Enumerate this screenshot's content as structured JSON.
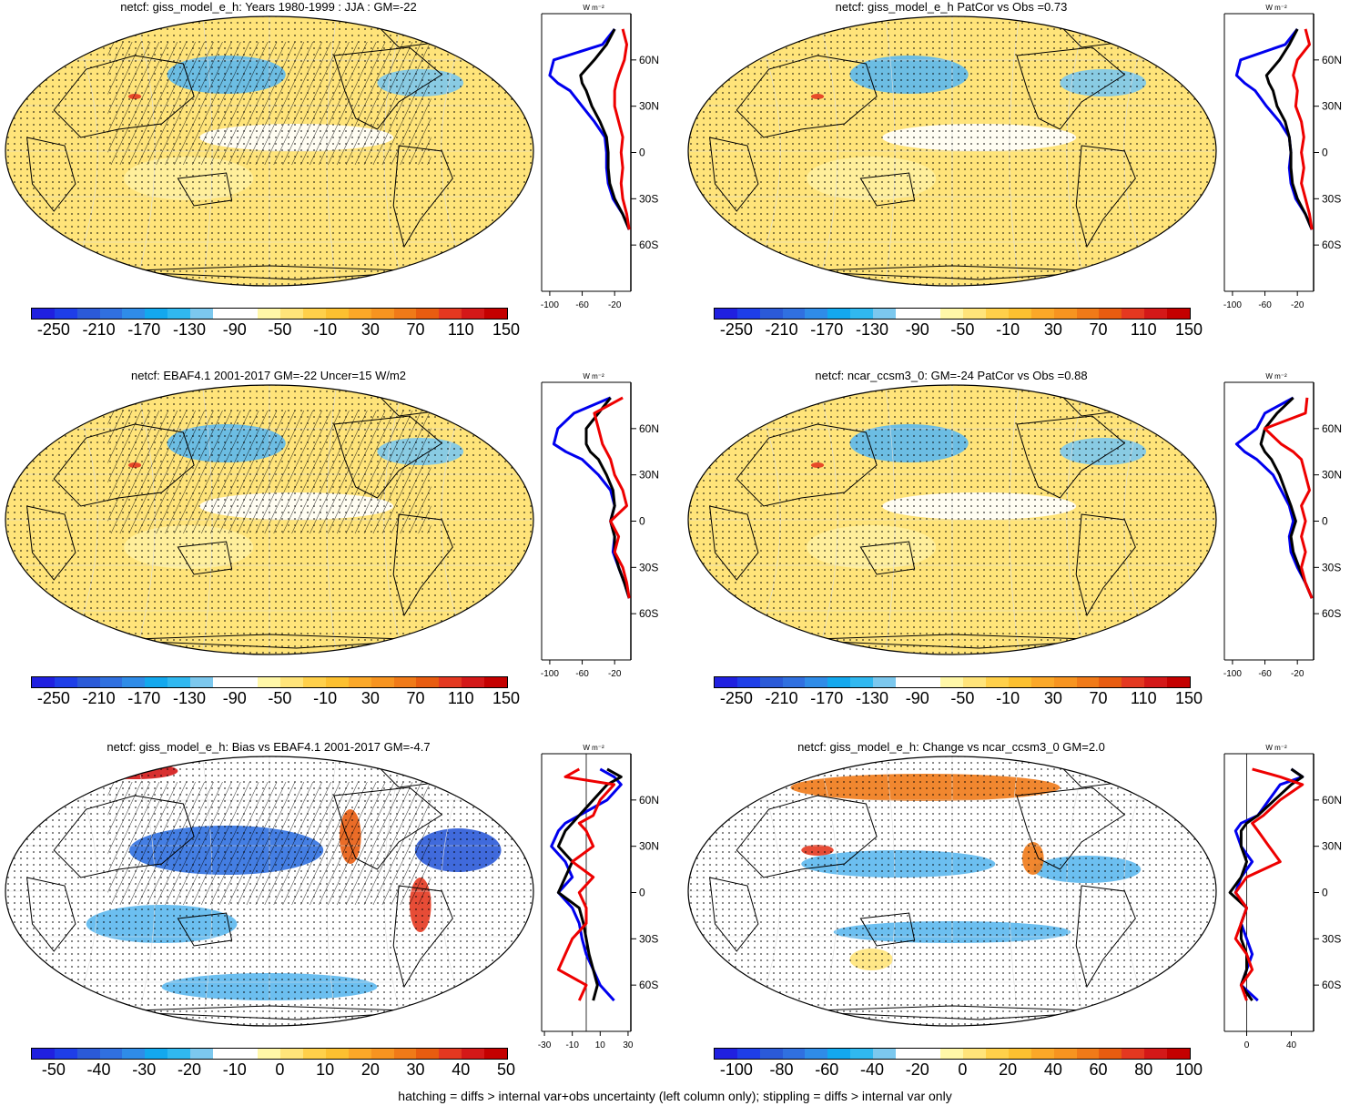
{
  "panels": [
    {
      "title": "netcf: giss_model_e_h: Years 1980-1999 : JJA : GM=-22",
      "hatched": true,
      "colorbar": "absolute",
      "zonal": {
        "xticks": [
          "-100",
          "-60",
          "-20"
        ],
        "xlim": [
          -110,
          0
        ],
        "yticks": [
          "60N",
          "30N",
          "0",
          "30S",
          "60S"
        ]
      },
      "chart_data": {
        "type": "line",
        "xlabel": "W m⁻²",
        "series": [
          {
            "color": "#0000ee",
            "lat": [
              80,
              70,
              60,
              50,
              45,
              40,
              30,
              20,
              10,
              0,
              -10,
              -20,
              -30,
              -40,
              -50
            ],
            "values": [
              -20,
              -35,
              -95,
              -100,
              -90,
              -75,
              -60,
              -45,
              -32,
              -30,
              -30,
              -28,
              -22,
              -10,
              -2
            ]
          },
          {
            "color": "#000000",
            "lat": [
              80,
              70,
              60,
              50,
              45,
              40,
              30,
              20,
              10,
              0,
              -10,
              -20,
              -30,
              -40,
              -50
            ],
            "values": [
              -20,
              -30,
              -45,
              -62,
              -60,
              -55,
              -48,
              -38,
              -30,
              -28,
              -28,
              -26,
              -20,
              -10,
              -2
            ]
          },
          {
            "color": "#ee0000",
            "lat": [
              80,
              70,
              60,
              50,
              45,
              40,
              30,
              20,
              10,
              0,
              -10,
              -20,
              -30,
              -40,
              -50
            ],
            "values": [
              -10,
              -5,
              -8,
              -15,
              -18,
              -20,
              -20,
              -15,
              -10,
              -12,
              -10,
              -12,
              -10,
              -5,
              -2
            ]
          }
        ]
      }
    },
    {
      "title": "netcf: giss_model_e_h PatCor vs Obs =0.73",
      "hatched": false,
      "colorbar": "absolute",
      "zonal": {
        "xticks": [
          "-100",
          "-60",
          "-20"
        ],
        "xlim": [
          -110,
          0
        ],
        "yticks": [
          "60N",
          "30N",
          "0",
          "30S",
          "60S"
        ]
      },
      "chart_data": {
        "type": "line",
        "xlabel": "W m⁻²",
        "series": [
          {
            "color": "#0000ee",
            "lat": [
              80,
              70,
              60,
              50,
              45,
              40,
              30,
              20,
              10,
              0,
              -10,
              -20,
              -30,
              -40,
              -50
            ],
            "values": [
              -20,
              -35,
              -90,
              -95,
              -85,
              -72,
              -58,
              -42,
              -30,
              -28,
              -30,
              -28,
              -22,
              -10,
              -2
            ]
          },
          {
            "color": "#000000",
            "lat": [
              80,
              70,
              60,
              50,
              45,
              40,
              30,
              20,
              10,
              0,
              -10,
              -20,
              -30,
              -40,
              -50
            ],
            "values": [
              -20,
              -30,
              -42,
              -58,
              -55,
              -50,
              -45,
              -35,
              -30,
              -28,
              -28,
              -26,
              -20,
              -10,
              -2
            ]
          },
          {
            "color": "#ee0000",
            "lat": [
              80,
              70,
              60,
              50,
              45,
              40,
              30,
              20,
              10,
              0,
              -10,
              -20,
              -30,
              -40,
              -50
            ],
            "values": [
              -10,
              -5,
              -20,
              -25,
              -22,
              -20,
              -22,
              -15,
              -12,
              -15,
              -12,
              -15,
              -10,
              -5,
              -2
            ]
          }
        ]
      }
    },
    {
      "title": "netcf: EBAF4.1 2001-2017 GM=-22 Uncer=15 W/m2",
      "hatched": true,
      "colorbar": "absolute",
      "zonal": {
        "xticks": [
          "-100",
          "-60",
          "-20"
        ],
        "xlim": [
          -110,
          0
        ],
        "yticks": [
          "60N",
          "30N",
          "0",
          "30S",
          "60S"
        ]
      },
      "chart_data": {
        "type": "line",
        "xlabel": "W m⁻²",
        "series": [
          {
            "color": "#0000ee",
            "lat": [
              80,
              70,
              60,
              50,
              45,
              40,
              30,
              20,
              10,
              0,
              -10,
              -20,
              -30,
              -40,
              -50
            ],
            "values": [
              -25,
              -70,
              -90,
              -95,
              -80,
              -60,
              -40,
              -25,
              -20,
              -25,
              -20,
              -22,
              -15,
              -8,
              -2
            ]
          },
          {
            "color": "#000000",
            "lat": [
              80,
              70,
              60,
              50,
              45,
              40,
              30,
              20,
              10,
              0,
              -10,
              -20,
              -30,
              -40,
              -50
            ],
            "values": [
              -25,
              -40,
              -55,
              -55,
              -50,
              -40,
              -30,
              -22,
              -20,
              -25,
              -20,
              -20,
              -15,
              -8,
              -2
            ]
          },
          {
            "color": "#ee0000",
            "lat": [
              80,
              70,
              60,
              50,
              45,
              40,
              30,
              20,
              10,
              0,
              -10,
              -20,
              -30,
              -40,
              -50
            ],
            "values": [
              -10,
              -45,
              -40,
              -35,
              -30,
              -25,
              -20,
              -10,
              -5,
              -25,
              -15,
              -20,
              -10,
              -5,
              -2
            ]
          }
        ]
      }
    },
    {
      "title": "netcf: ncar_ccsm3_0: GM=-24 PatCor vs Obs =0.88",
      "hatched": false,
      "colorbar": "absolute",
      "zonal": {
        "xticks": [
          "-100",
          "-60",
          "-20"
        ],
        "xlim": [
          -110,
          0
        ],
        "yticks": [
          "60N",
          "30N",
          "0",
          "30S",
          "60S"
        ]
      },
      "chart_data": {
        "type": "line",
        "xlabel": "W m⁻²",
        "series": [
          {
            "color": "#0000ee",
            "lat": [
              80,
              70,
              60,
              50,
              45,
              40,
              30,
              20,
              10,
              0,
              -10,
              -20,
              -30,
              -40,
              -50
            ],
            "values": [
              -25,
              -60,
              -70,
              -95,
              -85,
              -70,
              -50,
              -40,
              -30,
              -25,
              -30,
              -28,
              -20,
              -10,
              -2
            ]
          },
          {
            "color": "#000000",
            "lat": [
              80,
              70,
              60,
              50,
              45,
              40,
              30,
              20,
              10,
              0,
              -10,
              -20,
              -30,
              -40,
              -50
            ],
            "values": [
              -25,
              -45,
              -60,
              -65,
              -60,
              -52,
              -42,
              -35,
              -28,
              -22,
              -28,
              -25,
              -18,
              -10,
              -2
            ]
          },
          {
            "color": "#ee0000",
            "lat": [
              80,
              70,
              60,
              50,
              45,
              40,
              30,
              20,
              10,
              0,
              -10,
              -20,
              -30,
              -40,
              -50
            ],
            "values": [
              -8,
              -10,
              -60,
              -40,
              -25,
              -15,
              -10,
              -5,
              -15,
              -10,
              -15,
              -10,
              -15,
              -10,
              -2
            ]
          }
        ]
      }
    },
    {
      "title": "netcf: giss_model_e_h: Bias vs EBAF4.1 2001-2017 GM=-4.7",
      "hatched": true,
      "colorbar": "bias",
      "zonal": {
        "xticks": [
          "-30",
          "-10",
          "10",
          "30"
        ],
        "xlim": [
          -32,
          32
        ],
        "yticks": [
          "60N",
          "30N",
          "0",
          "30S",
          "60S"
        ]
      },
      "chart_data": {
        "type": "line",
        "xlabel": "W m⁻²",
        "series": [
          {
            "color": "#0000ee",
            "lat": [
              80,
              75,
              70,
              60,
              50,
              45,
              40,
              30,
              20,
              10,
              0,
              -10,
              -20,
              -30,
              -40,
              -50,
              -60,
              -70
            ],
            "values": [
              10,
              20,
              25,
              15,
              -5,
              -15,
              -20,
              -25,
              -15,
              -10,
              -20,
              -10,
              -5,
              -3,
              0,
              5,
              10,
              20
            ]
          },
          {
            "color": "#000000",
            "lat": [
              80,
              75,
              70,
              60,
              50,
              45,
              40,
              30,
              20,
              10,
              0,
              -10,
              -20,
              -30,
              -40,
              -50,
              -60,
              -70
            ],
            "values": [
              15,
              25,
              15,
              5,
              -5,
              -10,
              -15,
              -20,
              -10,
              -15,
              -20,
              -5,
              -2,
              0,
              2,
              5,
              8,
              5
            ]
          },
          {
            "color": "#ee0000",
            "lat": [
              80,
              75,
              70,
              60,
              50,
              45,
              40,
              30,
              20,
              10,
              0,
              -10,
              -20,
              -30,
              -40,
              -50,
              -60,
              -70
            ],
            "values": [
              -5,
              -15,
              20,
              10,
              5,
              -5,
              0,
              5,
              -10,
              5,
              -5,
              0,
              0,
              -10,
              -15,
              -20,
              0,
              -5
            ]
          }
        ]
      }
    },
    {
      "title": "netcf: giss_model_e_h: Change vs ncar_ccsm3_0 GM=2.0",
      "hatched": false,
      "colorbar": "change",
      "zonal": {
        "xticks": [
          "0",
          "40"
        ],
        "xlim": [
          -20,
          60
        ],
        "yticks": [
          "60N",
          "30N",
          "0",
          "30S",
          "60S"
        ]
      },
      "chart_data": {
        "type": "line",
        "xlabel": "W m⁻²",
        "series": [
          {
            "color": "#0000ee",
            "lat": [
              80,
              75,
              70,
              60,
              50,
              45,
              40,
              30,
              20,
              10,
              0,
              -10,
              -20,
              -30,
              -40,
              -50,
              -60,
              -70
            ],
            "values": [
              40,
              50,
              30,
              20,
              10,
              -5,
              -10,
              -5,
              5,
              -5,
              -10,
              0,
              -5,
              0,
              5,
              0,
              -5,
              10
            ]
          },
          {
            "color": "#000000",
            "lat": [
              80,
              75,
              70,
              60,
              50,
              45,
              40,
              30,
              20,
              10,
              0,
              -10,
              -20,
              -30,
              -40,
              -50,
              -60,
              -70
            ],
            "values": [
              40,
              50,
              40,
              25,
              10,
              0,
              -5,
              -5,
              0,
              -5,
              -15,
              0,
              -5,
              -5,
              0,
              0,
              -5,
              5
            ]
          },
          {
            "color": "#ee0000",
            "lat": [
              80,
              75,
              70,
              60,
              50,
              45,
              40,
              30,
              20,
              10,
              0,
              -10,
              -20,
              -30,
              -40,
              -50,
              -60,
              -70
            ],
            "values": [
              5,
              30,
              50,
              30,
              15,
              5,
              10,
              20,
              30,
              0,
              -10,
              0,
              -5,
              -10,
              0,
              5,
              -5,
              0
            ]
          }
        ]
      }
    }
  ],
  "colorbars": {
    "absolute": {
      "labels": [
        "-250",
        "-210",
        "-170",
        "-130",
        "-90",
        "-50",
        "-10",
        "30",
        "70",
        "110",
        "150"
      ],
      "colors": [
        "#2020e0",
        "#1e3ee8",
        "#2b5ad8",
        "#3070e0",
        "#2f8ce8",
        "#13a8ee",
        "#30b8f0",
        "#7cc8ee",
        "#ffffff",
        "#ffffff",
        "#fff7a8",
        "#ffe47a",
        "#ffd04a",
        "#fcc030",
        "#fba828",
        "#f79420",
        "#f07a18",
        "#e85c10",
        "#e43820",
        "#d41818",
        "#c40000"
      ]
    },
    "bias": {
      "labels": [
        "-50",
        "-40",
        "-30",
        "-20",
        "-10",
        "0",
        "10",
        "20",
        "30",
        "40",
        "50"
      ],
      "colors": [
        "#2020e0",
        "#1e3ee8",
        "#2b5ad8",
        "#3070e0",
        "#2f8ce8",
        "#13a8ee",
        "#30b8f0",
        "#7cc8ee",
        "#ffffff",
        "#ffffff",
        "#fff7a8",
        "#ffe47a",
        "#ffd04a",
        "#fcc030",
        "#fba828",
        "#f79420",
        "#f07a18",
        "#e85c10",
        "#e43820",
        "#d41818",
        "#c40000"
      ]
    },
    "change": {
      "labels": [
        "-100",
        "-80",
        "-60",
        "-40",
        "-20",
        "0",
        "20",
        "40",
        "60",
        "80",
        "100"
      ],
      "colors": [
        "#2020e0",
        "#1e3ee8",
        "#2b5ad8",
        "#3070e0",
        "#2f8ce8",
        "#13a8ee",
        "#30b8f0",
        "#7cc8ee",
        "#ffffff",
        "#ffffff",
        "#fff7a8",
        "#ffe47a",
        "#ffd04a",
        "#fcc030",
        "#fba828",
        "#f79420",
        "#f07a18",
        "#e85c10",
        "#e43820",
        "#d41818",
        "#c40000"
      ]
    }
  },
  "footer": "hatching = diffs > internal var+obs uncertainty (left column only); stippling = diffs > internal var only"
}
